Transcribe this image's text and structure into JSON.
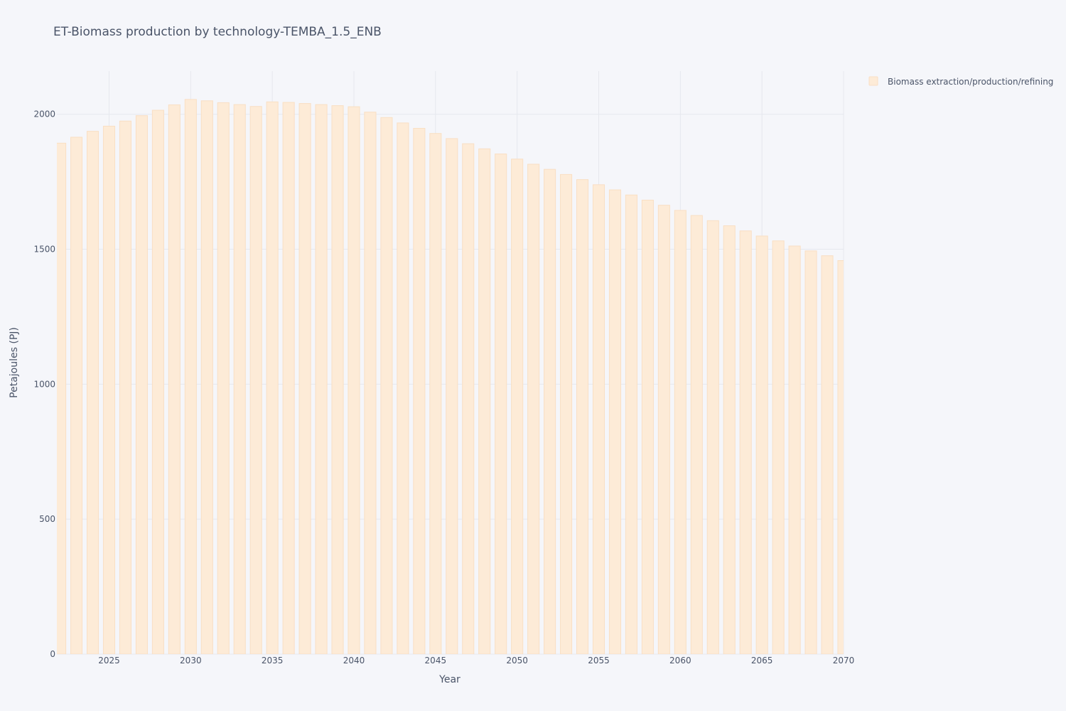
{
  "chart_data": {
    "type": "bar",
    "title": "ET-Biomass production by technology-TEMBA_1.5_ENB",
    "xlabel": "Year",
    "ylabel": "Petajoules (PJ)",
    "xlim": [
      2021.8,
      2070
    ],
    "ylim": [
      0,
      2160
    ],
    "x_ticks": [
      2025,
      2030,
      2035,
      2040,
      2045,
      2050,
      2055,
      2060,
      2065,
      2070
    ],
    "y_ticks": [
      0,
      500,
      1000,
      1500,
      2000
    ],
    "grid": true,
    "legend_position": "top-right",
    "categories": [
      2022,
      2023,
      2024,
      2025,
      2026,
      2027,
      2028,
      2029,
      2030,
      2031,
      2032,
      2033,
      2034,
      2035,
      2036,
      2037,
      2038,
      2039,
      2040,
      2041,
      2042,
      2043,
      2044,
      2045,
      2046,
      2047,
      2048,
      2049,
      2050,
      2051,
      2052,
      2053,
      2054,
      2055,
      2056,
      2057,
      2058,
      2059,
      2060,
      2061,
      2062,
      2063,
      2064,
      2065,
      2066,
      2067,
      2068,
      2069,
      2070
    ],
    "series": [
      {
        "name": "Biomass extraction/production/refining",
        "color": "#fdebd7",
        "border_color": "#f9dfc4",
        "values": [
          1893,
          1915,
          1937,
          1956,
          1975,
          1995,
          2015,
          2035,
          2055,
          2050,
          2043,
          2036,
          2029,
          2046,
          2044,
          2040,
          2036,
          2032,
          2028,
          2008,
          1988,
          1968,
          1948,
          1929,
          1910,
          1891,
          1872,
          1853,
          1834,
          1815,
          1796,
          1777,
          1758,
          1739,
          1720,
          1701,
          1682,
          1663,
          1644,
          1625,
          1606,
          1587,
          1568,
          1549,
          1531,
          1512,
          1494,
          1476,
          1458
        ]
      }
    ]
  }
}
